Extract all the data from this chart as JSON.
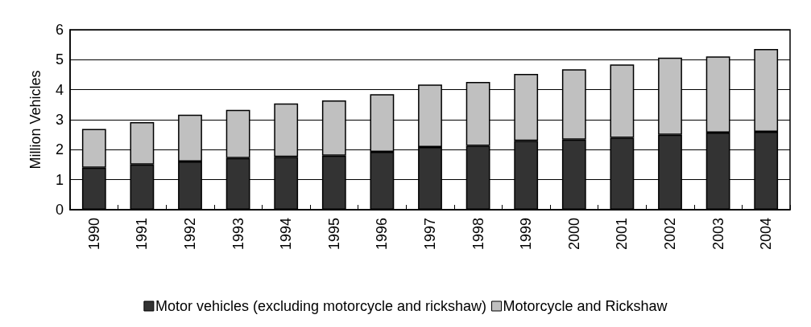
{
  "chart_data": {
    "type": "bar",
    "stacked": true,
    "ylabel": "Million Vehicles",
    "categories": [
      "1990",
      "1991",
      "1992",
      "1993",
      "1994",
      "1995",
      "1996",
      "1997",
      "1998",
      "1999",
      "2000",
      "2001",
      "2002",
      "2003",
      "2004"
    ],
    "series": [
      {
        "name": "Motor vehicles (excluding motorcycle and rickshaw)",
        "color": "#333333",
        "values": [
          1.4,
          1.51,
          1.61,
          1.72,
          1.76,
          1.8,
          1.93,
          2.09,
          2.13,
          2.3,
          2.34,
          2.4,
          2.5,
          2.57,
          2.6
        ]
      },
      {
        "name": "Motorcycle and Rickshaw",
        "color": "#c0c0c0",
        "values": [
          1.29,
          1.41,
          1.56,
          1.61,
          1.78,
          1.84,
          1.92,
          2.08,
          2.13,
          2.23,
          2.34,
          2.44,
          2.57,
          2.54,
          2.76
        ]
      }
    ],
    "ylim": [
      0,
      6
    ],
    "yticks": [
      0,
      1,
      2,
      3,
      4,
      5,
      6
    ],
    "grid": "y",
    "legend": "bottom"
  }
}
